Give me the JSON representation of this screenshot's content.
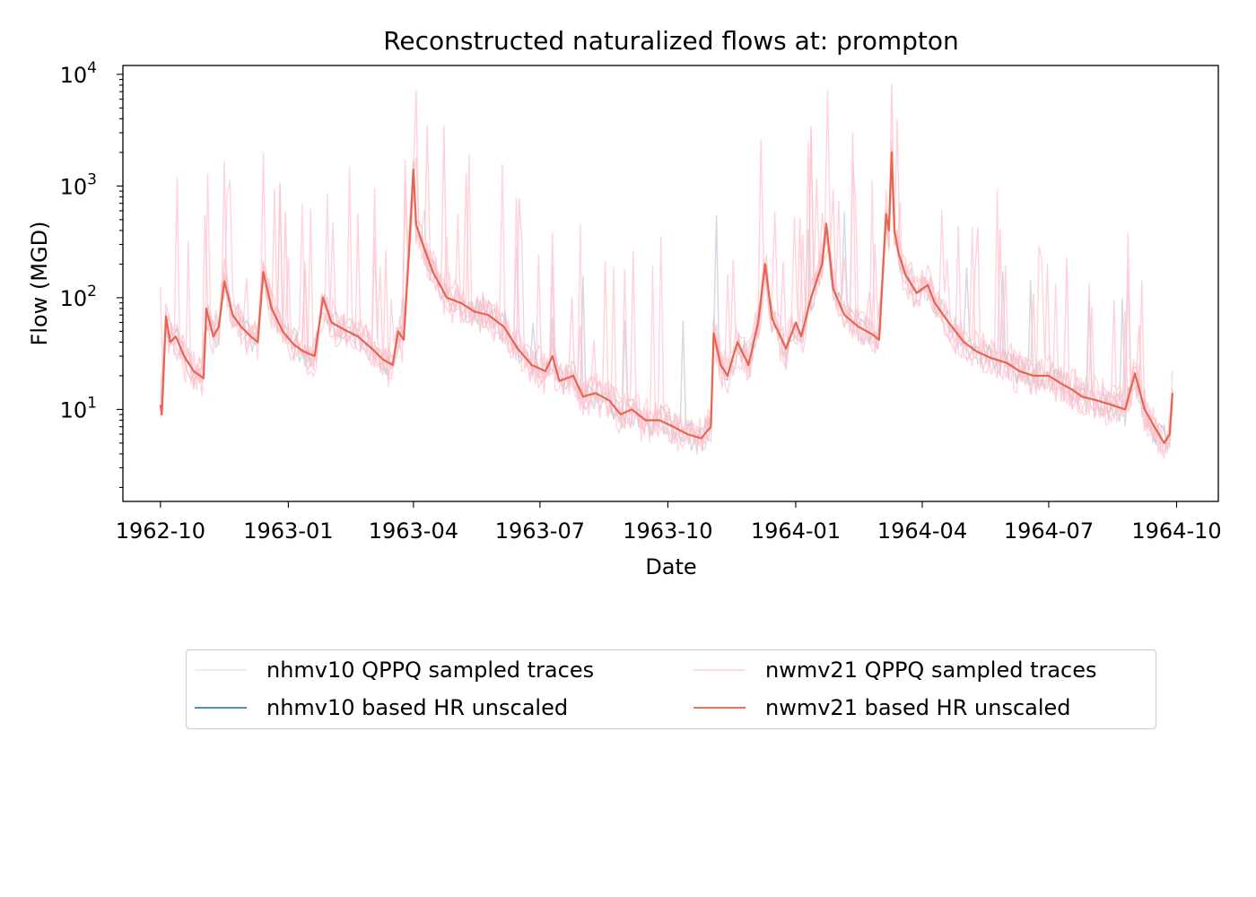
{
  "chart_data": {
    "type": "line",
    "title": "Reconstructed naturalized flows at: prompton",
    "xlabel": "Date",
    "ylabel": "Flow (MGD)",
    "yscale": "log",
    "ylim": [
      1.5,
      12000
    ],
    "xlim": [
      "1962-09-04",
      "1964-10-31"
    ],
    "x_ticks": [
      "1962-10",
      "1963-01",
      "1963-04",
      "1963-07",
      "1963-10",
      "1964-01",
      "1964-04",
      "1964-07",
      "1964-10"
    ],
    "y_ticks": [
      {
        "value": 10,
        "base": "10",
        "exp": "1"
      },
      {
        "value": 100,
        "base": "10",
        "exp": "2"
      },
      {
        "value": 1000,
        "base": "10",
        "exp": "3"
      },
      {
        "value": 10000,
        "base": "10",
        "exp": "4"
      }
    ],
    "legend": {
      "position": "below",
      "entries": [
        {
          "label": "nhmv10 QPPQ sampled traces",
          "color": "#add8e6"
        },
        {
          "label": "nwmv21 QPPQ sampled traces",
          "color": "#ffc0cb"
        },
        {
          "label": "nhmv10 based HR unscaled",
          "color": "#4682b4"
        },
        {
          "label": "nwmv21 based HR unscaled",
          "color": "#e8644f"
        }
      ]
    },
    "series": [
      {
        "name": "nwmv21 based HR unscaled",
        "color": "#e8644f",
        "points": [
          [
            "1962-10-01",
            11
          ],
          [
            "1962-10-02",
            9
          ],
          [
            "1962-10-05",
            68
          ],
          [
            "1962-10-08",
            40
          ],
          [
            "1962-10-12",
            45
          ],
          [
            "1962-10-18",
            30
          ],
          [
            "1962-10-25",
            22
          ],
          [
            "1962-11-01",
            19
          ],
          [
            "1962-11-03",
            80
          ],
          [
            "1962-11-08",
            45
          ],
          [
            "1962-11-12",
            55
          ],
          [
            "1962-11-16",
            140
          ],
          [
            "1962-11-22",
            70
          ],
          [
            "1962-11-28",
            55
          ],
          [
            "1962-12-05",
            45
          ],
          [
            "1962-12-10",
            40
          ],
          [
            "1962-12-14",
            170
          ],
          [
            "1962-12-20",
            80
          ],
          [
            "1962-12-28",
            50
          ],
          [
            "1963-01-05",
            38
          ],
          [
            "1963-01-12",
            33
          ],
          [
            "1963-01-20",
            30
          ],
          [
            "1963-01-26",
            100
          ],
          [
            "1963-02-01",
            60
          ],
          [
            "1963-02-10",
            52
          ],
          [
            "1963-02-20",
            45
          ],
          [
            "1963-03-01",
            36
          ],
          [
            "1963-03-10",
            28
          ],
          [
            "1963-03-17",
            25
          ],
          [
            "1963-03-21",
            50
          ],
          [
            "1963-03-25",
            42
          ],
          [
            "1963-03-29",
            280
          ],
          [
            "1963-04-01",
            1400
          ],
          [
            "1963-04-03",
            450
          ],
          [
            "1963-04-07",
            320
          ],
          [
            "1963-04-15",
            170
          ],
          [
            "1963-04-25",
            100
          ],
          [
            "1963-05-05",
            90
          ],
          [
            "1963-05-15",
            75
          ],
          [
            "1963-05-25",
            70
          ],
          [
            "1963-06-05",
            55
          ],
          [
            "1963-06-15",
            35
          ],
          [
            "1963-06-25",
            25
          ],
          [
            "1963-07-05",
            22
          ],
          [
            "1963-07-10",
            30
          ],
          [
            "1963-07-15",
            18
          ],
          [
            "1963-07-25",
            20
          ],
          [
            "1963-08-01",
            13
          ],
          [
            "1963-08-10",
            14
          ],
          [
            "1963-08-20",
            12
          ],
          [
            "1963-08-28",
            9
          ],
          [
            "1963-09-05",
            10
          ],
          [
            "1963-09-15",
            8
          ],
          [
            "1963-09-25",
            8
          ],
          [
            "1963-10-05",
            7
          ],
          [
            "1963-10-15",
            6
          ],
          [
            "1963-10-25",
            5.5
          ],
          [
            "1963-11-01",
            7
          ],
          [
            "1963-11-03",
            48
          ],
          [
            "1963-11-08",
            25
          ],
          [
            "1963-11-13",
            20
          ],
          [
            "1963-11-20",
            40
          ],
          [
            "1963-11-28",
            25
          ],
          [
            "1963-12-05",
            60
          ],
          [
            "1963-12-10",
            200
          ],
          [
            "1963-12-15",
            65
          ],
          [
            "1963-12-25",
            35
          ],
          [
            "1964-01-01",
            60
          ],
          [
            "1964-01-05",
            45
          ],
          [
            "1964-01-12",
            100
          ],
          [
            "1964-01-20",
            200
          ],
          [
            "1964-01-23",
            460
          ],
          [
            "1964-01-28",
            120
          ],
          [
            "1964-02-05",
            70
          ],
          [
            "1964-02-15",
            55
          ],
          [
            "1964-02-25",
            47
          ],
          [
            "1964-03-01",
            42
          ],
          [
            "1964-03-06",
            560
          ],
          [
            "1964-03-08",
            400
          ],
          [
            "1964-03-10",
            2000
          ],
          [
            "1964-03-12",
            400
          ],
          [
            "1964-03-15",
            250
          ],
          [
            "1964-03-20",
            160
          ],
          [
            "1964-03-28",
            110
          ],
          [
            "1964-04-05",
            130
          ],
          [
            "1964-04-10",
            90
          ],
          [
            "1964-04-20",
            60
          ],
          [
            "1964-05-01",
            40
          ],
          [
            "1964-05-10",
            33
          ],
          [
            "1964-05-20",
            29
          ],
          [
            "1964-06-01",
            26
          ],
          [
            "1964-06-10",
            22
          ],
          [
            "1964-06-20",
            20
          ],
          [
            "1964-07-01",
            20
          ],
          [
            "1964-07-10",
            17
          ],
          [
            "1964-07-18",
            15
          ],
          [
            "1964-07-25",
            13
          ],
          [
            "1964-08-05",
            12
          ],
          [
            "1964-08-15",
            11
          ],
          [
            "1964-08-25",
            10
          ],
          [
            "1964-09-01",
            21
          ],
          [
            "1964-09-08",
            10
          ],
          [
            "1964-09-15",
            7
          ],
          [
            "1964-09-22",
            5
          ],
          [
            "1964-09-26",
            6
          ],
          [
            "1964-09-28",
            14
          ]
        ]
      }
    ]
  },
  "colors": {
    "nwm_trace": "#ffc0cb",
    "nwm_hr": "#e8644f",
    "nhm_trace": "#aab8c8"
  }
}
